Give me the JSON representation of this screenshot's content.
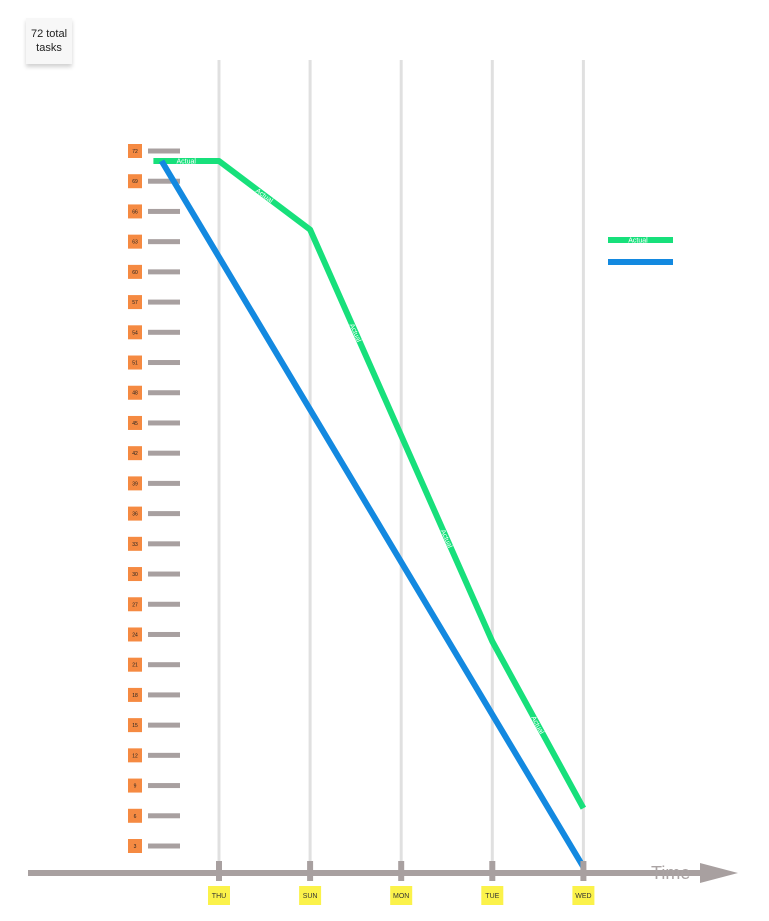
{
  "note": {
    "text": "72 total tasks"
  },
  "chart_data": {
    "type": "line",
    "title": "",
    "xlabel": "Time",
    "ylabel": "",
    "categories": [
      "THU",
      "SUN",
      "MON",
      "TUE",
      "WED"
    ],
    "y_ticks": [
      "72",
      "69",
      "66",
      "63",
      "60",
      "57",
      "54",
      "51",
      "48",
      "45",
      "42",
      "39",
      "36",
      "33",
      "30",
      "27",
      "24",
      "21",
      "18",
      "15",
      "12",
      "9",
      "6",
      "3"
    ],
    "ylim": [
      0,
      72
    ],
    "series": [
      {
        "name": "Actual",
        "color": "#17e07b",
        "x": [
          -0.72,
          0,
          1,
          2,
          3,
          4
        ],
        "values": [
          72,
          72,
          65,
          44,
          23,
          6
        ]
      },
      {
        "name": "",
        "color": "#1389e0",
        "x": [
          -0.63,
          4
        ],
        "values": [
          72,
          0
        ]
      }
    ],
    "legend_position": "right",
    "grid": true
  }
}
